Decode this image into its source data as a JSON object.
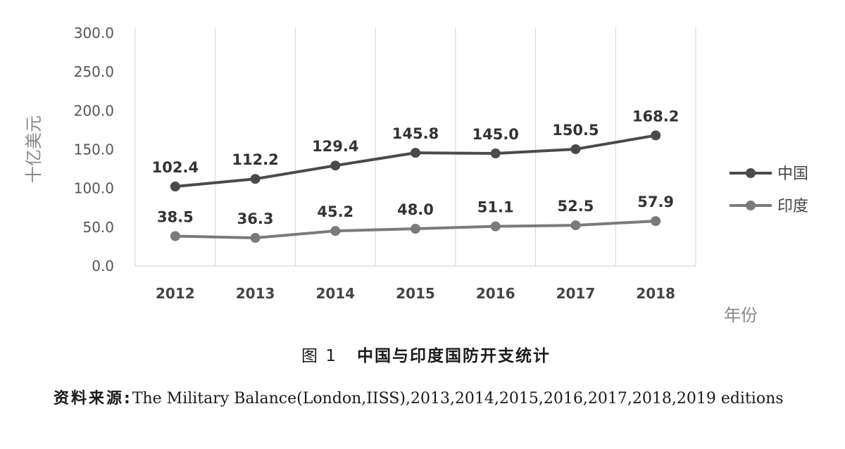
{
  "chart_data": {
    "type": "line",
    "categories": [
      "2012",
      "2013",
      "2014",
      "2015",
      "2016",
      "2017",
      "2018"
    ],
    "series": [
      {
        "name": "中国",
        "values": [
          102.4,
          112.2,
          129.4,
          145.8,
          145.0,
          150.5,
          168.2
        ],
        "color": "#4a4a4a"
      },
      {
        "name": "印度",
        "values": [
          38.5,
          36.3,
          45.2,
          48.0,
          51.1,
          52.5,
          57.9
        ],
        "color": "#7a7a7a"
      }
    ],
    "point_labels": [
      [
        "102.4",
        "112.2",
        "129.4",
        "145.8",
        "145.0",
        "150.5",
        "168.2"
      ],
      [
        "38.5",
        "36.3",
        "45.2",
        "48.0",
        "51.1",
        "52.5",
        "57.9"
      ]
    ],
    "yticks": [
      "300.0",
      "250.0",
      "200.0",
      "150.0",
      "100.0",
      "50.0",
      "0.0"
    ],
    "ylim": [
      0,
      300
    ],
    "ylabel": "十亿美元",
    "xlabel": "年份",
    "grid": "vertical",
    "legend": "right"
  },
  "caption": {
    "figure_number": "图 1",
    "title": "中国与印度国防开支统计"
  },
  "source": {
    "lead": "资料来源:",
    "text": "The Military Balance(London,IISS),2013,2014,2015,2016,2017,2018,2019 editions"
  }
}
